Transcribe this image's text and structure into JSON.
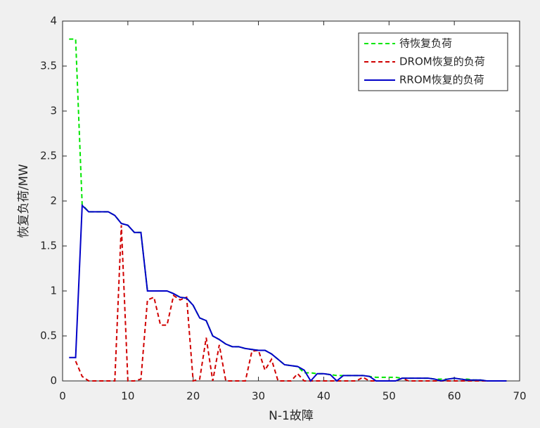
{
  "chart_data": {
    "type": "line",
    "xlabel": "N-1故障",
    "ylabel": "恢复负荷/MW",
    "x": [
      1,
      2,
      3,
      4,
      5,
      6,
      7,
      8,
      9,
      10,
      11,
      12,
      13,
      14,
      15,
      16,
      17,
      18,
      19,
      20,
      21,
      22,
      23,
      24,
      25,
      26,
      27,
      28,
      29,
      30,
      31,
      32,
      33,
      34,
      35,
      36,
      37,
      38,
      39,
      40,
      41,
      42,
      43,
      44,
      45,
      46,
      47,
      48,
      49,
      50,
      51,
      52,
      53,
      54,
      55,
      56,
      57,
      58,
      59,
      60,
      61,
      62,
      63,
      64,
      65,
      66,
      67,
      68
    ],
    "series": [
      {
        "name": "待恢复负荷",
        "color": "#00e600",
        "dash": true,
        "values": [
          3.8,
          3.8,
          1.96,
          1.88,
          1.88,
          1.88,
          1.88,
          1.84,
          1.75,
          1.73,
          1.65,
          1.65,
          1.0,
          1.0,
          1.0,
          1.0,
          0.97,
          0.93,
          0.92,
          0.84,
          0.7,
          0.67,
          0.5,
          0.46,
          0.41,
          0.38,
          0.38,
          0.36,
          0.35,
          0.34,
          0.34,
          0.3,
          0.24,
          0.18,
          0.17,
          0.16,
          0.09,
          0.09,
          0.08,
          0.08,
          0.07,
          0.06,
          0.06,
          0.06,
          0.06,
          0.06,
          0.05,
          0.04,
          0.04,
          0.04,
          0.04,
          0.03,
          0.03,
          0.03,
          0.03,
          0.03,
          0.02,
          0.02,
          0.02,
          0.03,
          0.02,
          0.02,
          0.01,
          0.01,
          0,
          0,
          0,
          0
        ]
      },
      {
        "name": "DROM恢复的负荷",
        "color": "#d00000",
        "dash": true,
        "values": [
          null,
          0.22,
          0.05,
          0,
          0,
          0,
          0,
          0,
          1.73,
          0,
          0,
          0.02,
          0.9,
          0.93,
          0.62,
          0.62,
          0.95,
          0.9,
          0.93,
          0,
          0.02,
          0.48,
          0,
          0.4,
          0,
          0,
          0,
          0,
          0.33,
          0.34,
          0.12,
          0.24,
          0,
          0,
          0,
          0.08,
          0,
          0,
          0,
          0,
          0,
          0,
          0,
          0,
          0,
          0.04,
          0,
          0,
          0,
          0,
          0,
          0.03,
          0,
          0,
          0,
          0,
          0,
          0,
          0,
          0,
          0,
          0,
          0,
          0,
          0,
          0,
          0,
          0
        ]
      },
      {
        "name": "RROM恢复的负荷",
        "color": "#0000c8",
        "dash": false,
        "values": [
          0.26,
          0.26,
          1.95,
          1.88,
          1.88,
          1.88,
          1.88,
          1.84,
          1.75,
          1.73,
          1.65,
          1.65,
          1.0,
          1.0,
          1.0,
          1.0,
          0.97,
          0.93,
          0.92,
          0.84,
          0.7,
          0.67,
          0.5,
          0.46,
          0.41,
          0.38,
          0.38,
          0.36,
          0.35,
          0.34,
          0.34,
          0.3,
          0.24,
          0.18,
          0.17,
          0.16,
          0.12,
          0,
          0.08,
          0.08,
          0.07,
          0,
          0.06,
          0.06,
          0.06,
          0.06,
          0.05,
          0,
          0,
          0,
          0,
          0.03,
          0.03,
          0.03,
          0.03,
          0.03,
          0.02,
          0,
          0.02,
          0.03,
          0.02,
          0.01,
          0.01,
          0.01,
          0,
          0,
          0,
          0
        ]
      }
    ],
    "xlim": [
      0,
      70
    ],
    "xticks": [
      0,
      10,
      20,
      30,
      40,
      50,
      60,
      70
    ],
    "ylim": [
      0,
      4
    ],
    "yticks": [
      0,
      0.5,
      1,
      1.5,
      2,
      2.5,
      3,
      3.5,
      4
    ],
    "legend": "northeast"
  }
}
